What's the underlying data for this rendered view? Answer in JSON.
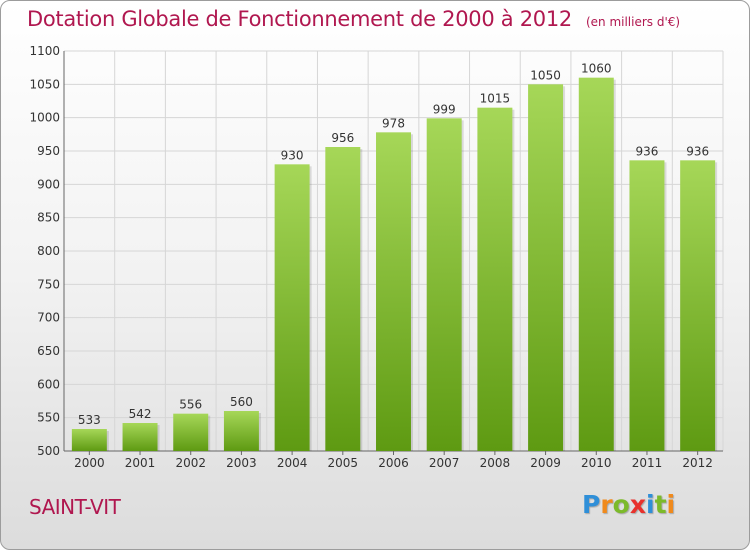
{
  "title": "Dotation Globale de Fonctionnement de 2000 à 2012",
  "subtitle": "(en milliers d'€)",
  "city": "SAINT-VIT",
  "logo": {
    "letters": [
      "P",
      "r",
      "o",
      "x",
      "i",
      "t",
      "i"
    ],
    "colors": [
      "#2f8fd8",
      "#f08a1c",
      "#7cba2a",
      "#e8312c",
      "#2f8fd8",
      "#7cba2a",
      "#f08a1c"
    ]
  },
  "colors": {
    "bar_top": "#a6d758",
    "bar_bottom": "#5e9a12",
    "title": "#b0174f",
    "grid": "#d6d6d6"
  },
  "chart_data": {
    "type": "bar",
    "categories": [
      "2000",
      "2001",
      "2002",
      "2003",
      "2004",
      "2005",
      "2006",
      "2007",
      "2008",
      "2009",
      "2010",
      "2011",
      "2012"
    ],
    "values": [
      533,
      542,
      556,
      560,
      930,
      956,
      978,
      999,
      1015,
      1050,
      1060,
      936,
      936
    ],
    "ylim": [
      500,
      1100
    ],
    "yticks": [
      500,
      550,
      600,
      650,
      700,
      750,
      800,
      850,
      900,
      950,
      1000,
      1050,
      1100
    ],
    "grid": true
  }
}
